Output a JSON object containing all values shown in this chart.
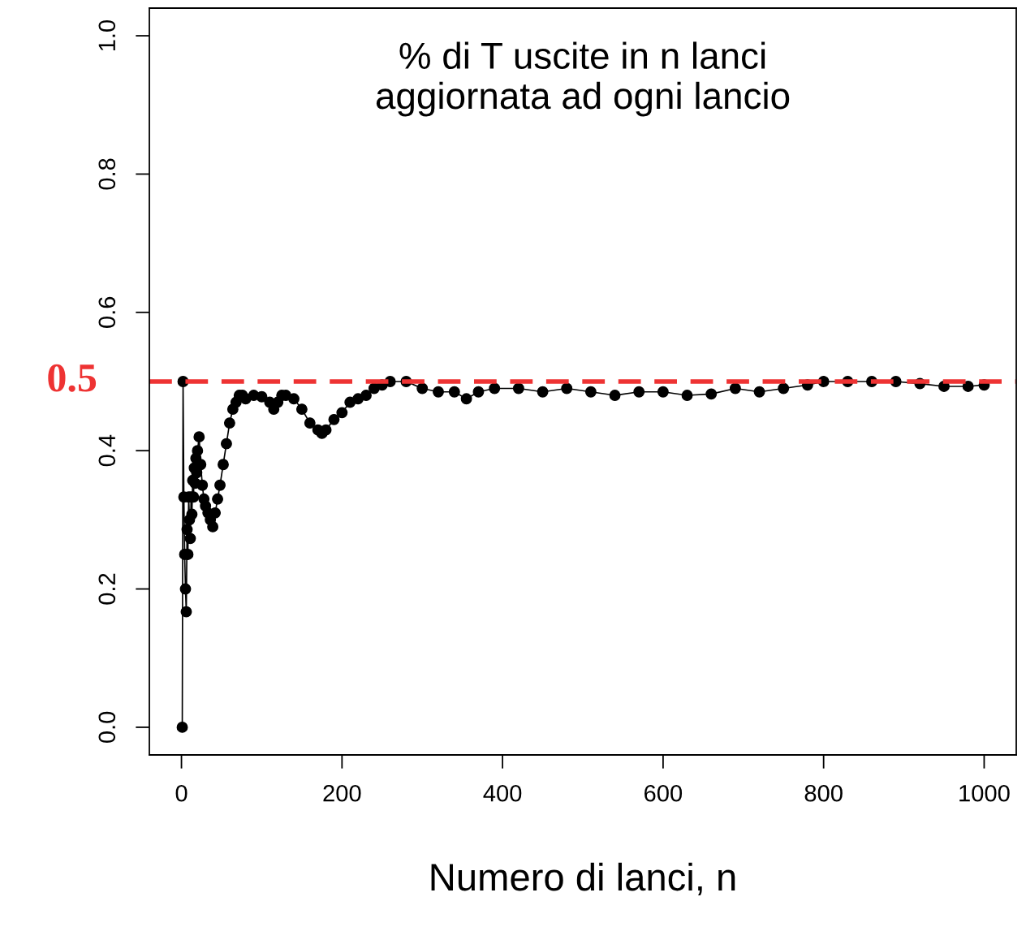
{
  "chart_data": {
    "type": "line",
    "title": "% di T uscite in n lanci\naggiornata ad ogni lancio",
    "xlabel": "Numero di lanci, n",
    "x": [
      1,
      2,
      3,
      4,
      5,
      6,
      7,
      8,
      9,
      10,
      11,
      12,
      13,
      14,
      15,
      16,
      17,
      18,
      19,
      20,
      22,
      24,
      26,
      28,
      30,
      33,
      36,
      39,
      42,
      45,
      48,
      52,
      56,
      60,
      64,
      68,
      72,
      76,
      80,
      90,
      100,
      110,
      115,
      120,
      125,
      130,
      140,
      150,
      160,
      170,
      175,
      180,
      190,
      200,
      210,
      220,
      230,
      240,
      250,
      260,
      280,
      300,
      320,
      340,
      355,
      370,
      390,
      420,
      450,
      480,
      510,
      540,
      570,
      600,
      630,
      660,
      690,
      720,
      750,
      780,
      800,
      830,
      860,
      890,
      920,
      950,
      980,
      1000
    ],
    "series": [
      {
        "color": "#000000",
        "values": [
          0,
          0.5,
          0.333,
          0.25,
          0.2,
          0.167,
          0.286,
          0.25,
          0.333,
          0.3,
          0.273,
          0.333,
          0.308,
          0.357,
          0.333,
          0.375,
          0.353,
          0.389,
          0.368,
          0.4,
          0.42,
          0.38,
          0.35,
          0.33,
          0.32,
          0.31,
          0.3,
          0.29,
          0.31,
          0.33,
          0.35,
          0.38,
          0.41,
          0.44,
          0.46,
          0.47,
          0.48,
          0.48,
          0.475,
          0.48,
          0.478,
          0.47,
          0.46,
          0.47,
          0.48,
          0.48,
          0.475,
          0.46,
          0.44,
          0.43,
          0.425,
          0.43,
          0.445,
          0.455,
          0.47,
          0.475,
          0.48,
          0.49,
          0.495,
          0.5,
          0.5,
          0.49,
          0.485,
          0.485,
          0.475,
          0.485,
          0.49,
          0.49,
          0.485,
          0.49,
          0.485,
          0.48,
          0.485,
          0.485,
          0.48,
          0.482,
          0.49,
          0.485,
          0.49,
          0.495,
          0.5,
          0.5,
          0.5,
          0.5,
          0.497,
          0.493,
          0.493,
          0.495
        ]
      }
    ],
    "marker": "circle",
    "line_style": "solid",
    "xlim": [
      -40,
      1040
    ],
    "ylim": [
      -0.04,
      1.04
    ],
    "xticks": [
      0,
      200,
      400,
      600,
      800,
      1000
    ],
    "yticks": [
      {
        "value": 0,
        "label": "0.0"
      },
      0.2,
      0.4,
      0.6,
      0.8,
      {
        "value": 1,
        "label": "1.0"
      }
    ],
    "ref_lines": [
      {
        "axis": "y",
        "value": 0.5,
        "label": "0.5",
        "color": "#ee3333",
        "line_style": "dashed"
      }
    ],
    "grid": false,
    "legend": false
  }
}
